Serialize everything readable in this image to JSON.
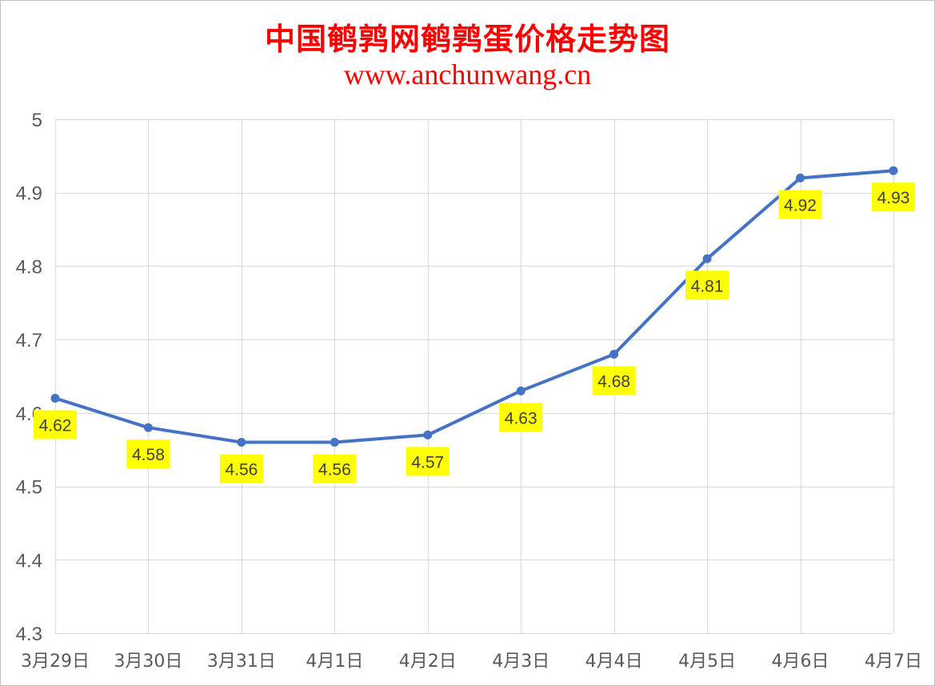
{
  "chart_data": {
    "type": "line",
    "title": "中国鹌鹑网鹌鹑蛋价格走势图",
    "subtitle": "www.anchunwang.cn",
    "xlabel": "",
    "ylabel": "",
    "categories": [
      "3月29日",
      "3月30日",
      "3月31日",
      "4月1日",
      "4月2日",
      "4月3日",
      "4月4日",
      "4月5日",
      "4月6日",
      "4月7日"
    ],
    "series": [
      {
        "values": [
          4.62,
          4.58,
          4.56,
          4.56,
          4.57,
          4.63,
          4.68,
          4.81,
          4.92,
          4.93
        ],
        "color": "#4472c4",
        "labels": [
          "4.62",
          "4.58",
          "4.56",
          "4.56",
          "4.57",
          "4.63",
          "4.68",
          "4.81",
          "4.92",
          "4.93"
        ]
      }
    ],
    "ylim": [
      4.3,
      5
    ],
    "yticks": [
      4.3,
      4.4,
      4.5,
      4.6,
      4.7,
      4.8,
      4.9,
      5
    ],
    "ytick_labels": [
      "4.3",
      "4.4",
      "4.5",
      "4.6",
      "4.7",
      "4.8",
      "4.9",
      "5"
    ],
    "grid": true,
    "legend": "none",
    "data_label_background": "#ffff00",
    "title_color": "#ff0000",
    "grid_color": "#d9d9d9"
  }
}
